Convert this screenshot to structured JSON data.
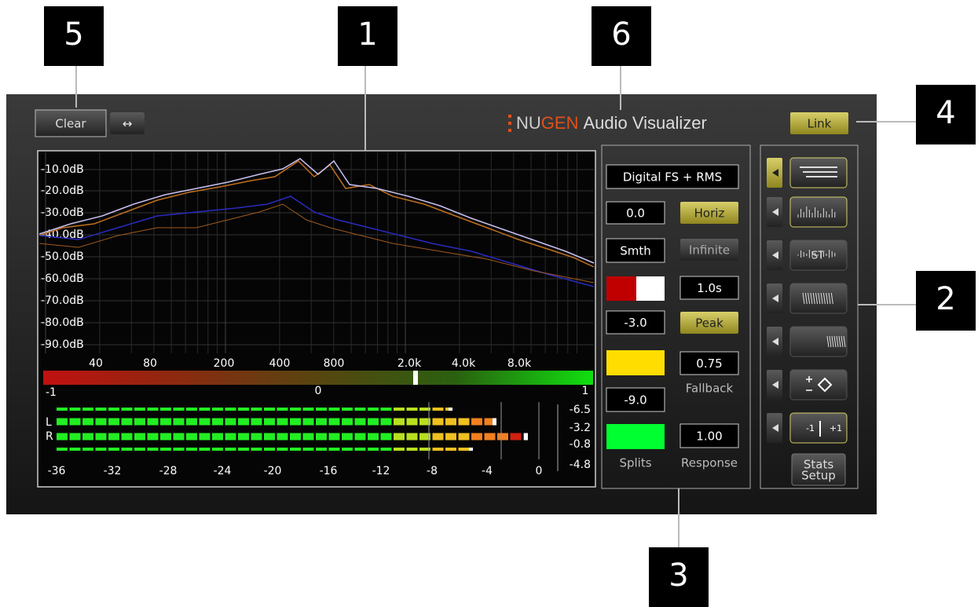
{
  "callouts": [
    "5",
    "1",
    "6",
    "4",
    "2",
    "3"
  ],
  "toolbar": {
    "clear": "Clear",
    "swap": "↔",
    "logo_brand_a": "NU",
    "logo_brand_b": "GEN",
    "logo_product": "Audio Visualizer",
    "link": "Link"
  },
  "spectrum": {
    "y_labels": [
      "-10.0dB",
      "-20.0dB",
      "-30.0dB",
      "-40.0dB",
      "-50.0dB",
      "-60.0dB",
      "-70.0dB",
      "-80.0dB",
      "-90.0dB"
    ],
    "x_labels": [
      "40",
      "80",
      "200",
      "400",
      "800",
      "2.0k",
      "4.0k",
      "8.0k"
    ],
    "correlation_labels": [
      "-1",
      "0",
      "1"
    ]
  },
  "meter": {
    "channels": [
      "L",
      "R"
    ],
    "readouts": [
      "-6.5",
      "-3.2",
      "-0.8",
      "-4.8"
    ],
    "scale": [
      "-36",
      "-32",
      "-28",
      "-24",
      "-20",
      "-16",
      "-12",
      "-8",
      "-4",
      "0"
    ]
  },
  "settings": {
    "mode": "Digital FS + RMS",
    "offset": "0.0",
    "horiz": "Horiz",
    "smoothing": "Smth",
    "infinite": "Infinite",
    "hold": "1.0s",
    "split_high": "-3.0",
    "peak": "Peak",
    "fallback_value": "0.75",
    "fallback": "Fallback",
    "split_low": "-9.0",
    "response_value": "1.00",
    "splits": "Splits",
    "response": "Response"
  },
  "view_buttons": {
    "stereo": "ST",
    "minus_one": "-1",
    "plus_one": "+1",
    "stats_setup": [
      "Stats",
      "Setup"
    ]
  }
}
